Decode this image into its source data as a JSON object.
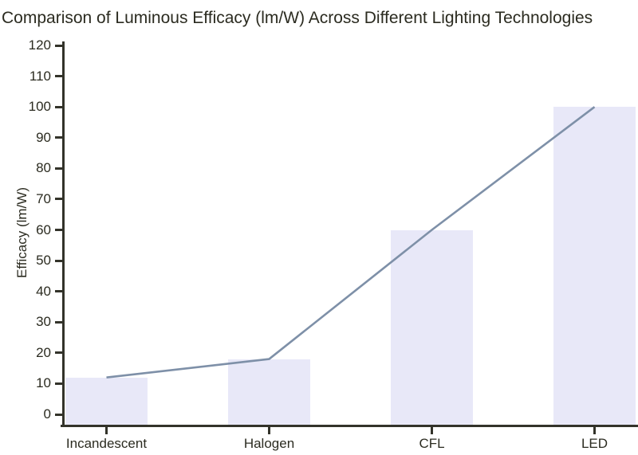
{
  "figure": {
    "title": "Comparison of Luminous Efficacy (lm/W) Across Different Lighting Technologies"
  },
  "chart_data": {
    "type": "bar",
    "title": "Comparison of Luminous Efficacy (lm/W) Across Different Lighting Technologies",
    "categories": [
      "Incandescent",
      "Halogen",
      "CFL",
      "LED"
    ],
    "values": [
      12,
      18,
      60,
      100
    ],
    "series": [
      {
        "name": "efficacy-bars",
        "type": "bar",
        "values": [
          12,
          18,
          60,
          100
        ]
      },
      {
        "name": "efficacy-line",
        "type": "line",
        "values": [
          12,
          18,
          60,
          100
        ]
      }
    ],
    "xlabel": "",
    "ylabel": "Efficacy (lm/W)",
    "ylim": [
      0,
      120
    ],
    "yticks": [
      0,
      10,
      20,
      30,
      40,
      50,
      60,
      70,
      80,
      90,
      100,
      110,
      120
    ],
    "grid": false,
    "legend": false,
    "colors": {
      "bar_fill": "#e8e8f8",
      "line": "#7e90a8",
      "text": "#2b2b20",
      "axis": "#33332a",
      "background": "#ffffff"
    }
  }
}
